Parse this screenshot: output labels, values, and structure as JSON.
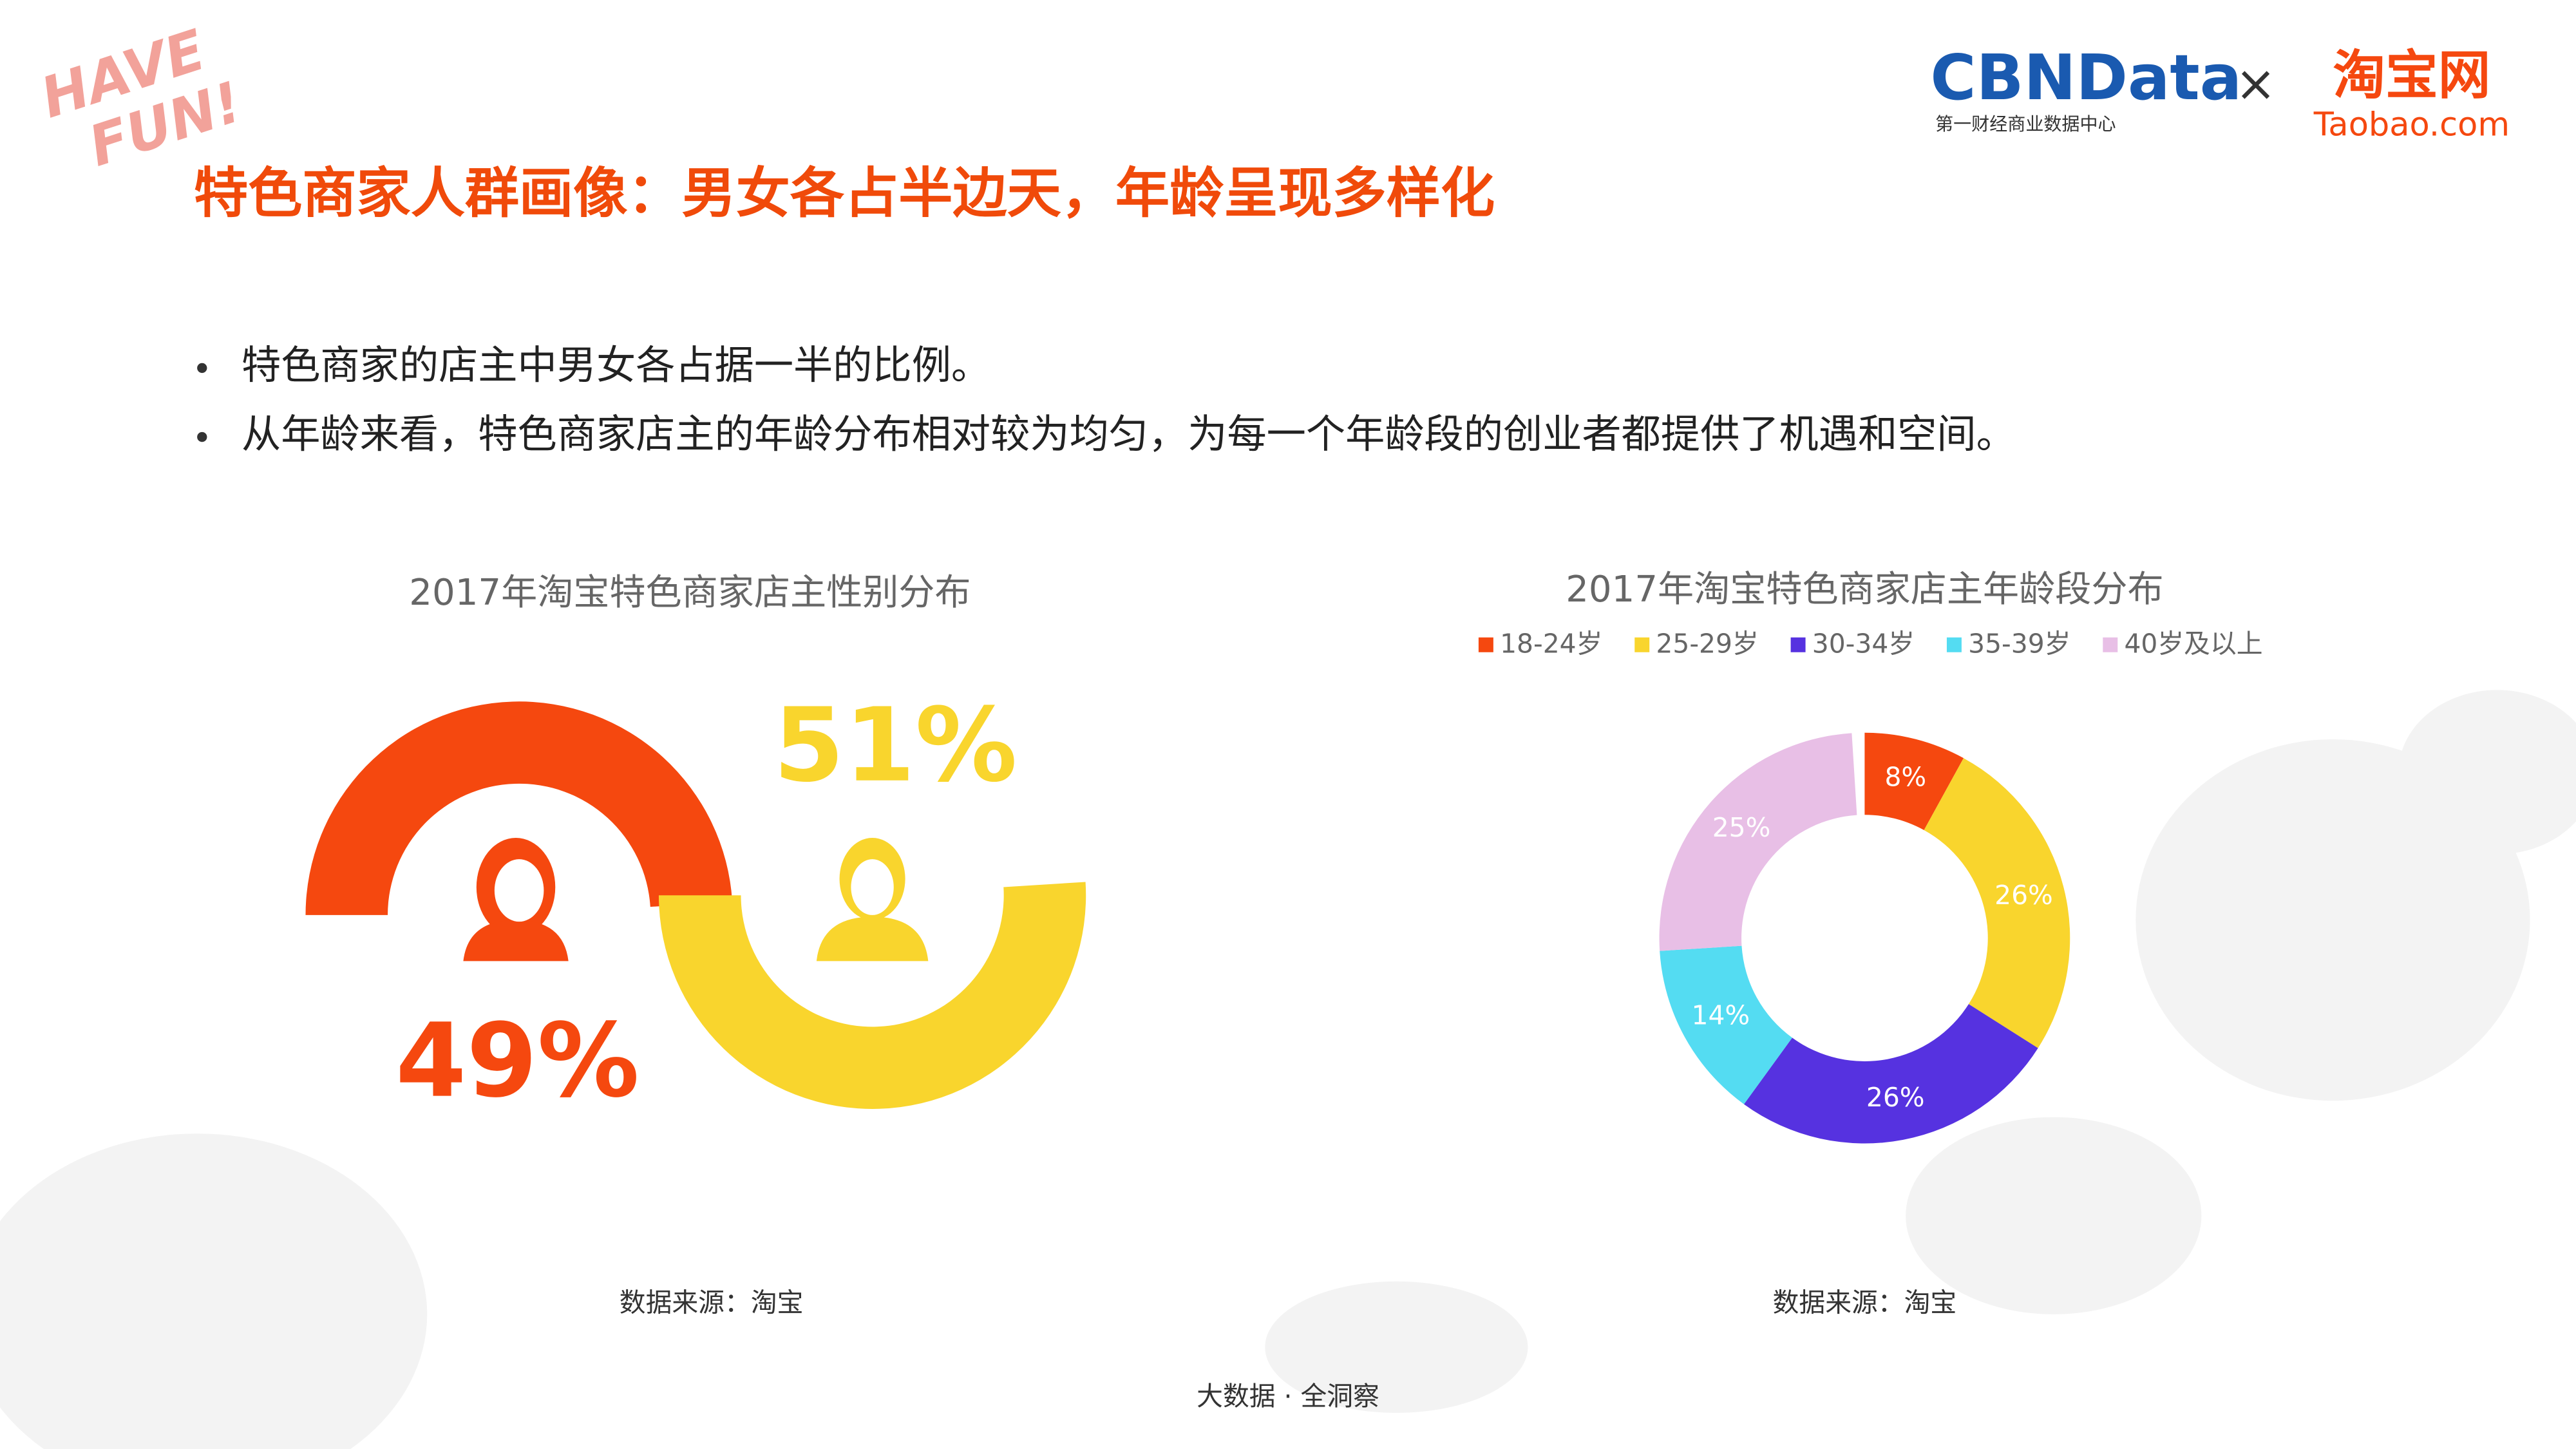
{
  "logo": {
    "have": "HAVE",
    "fun": "FUN!"
  },
  "brand": {
    "cbn": "CBNData",
    "cbn_sub": "第一财经商业数据中心",
    "times": "×",
    "taobao": "淘宝网",
    "taobao_sub": "Taobao.com"
  },
  "header": {
    "title": "特色商家人群画像：男女各占半边天，年龄呈现多样化"
  },
  "bullets": [
    "特色商家的店主中男女各占据一半的比例。",
    "从年龄来看，特色商家店主的年龄分布相对较为均匀，为每一个年龄段的创业者都提供了机遇和空间。"
  ],
  "chart_data": [
    {
      "type": "gauge-pair",
      "title": "2017年淘宝特色商家店主性别分布",
      "values": [
        49,
        51
      ],
      "value_labels": [
        "49%",
        "51%"
      ],
      "colors": [
        "#f5480f",
        "#f9d52d"
      ],
      "source": "数据来源：淘宝"
    },
    {
      "type": "donut",
      "title": "2017年淘宝特色商家店主年龄段分布",
      "categories": [
        "18-24岁",
        "25-29岁",
        "30-34岁",
        "35-39岁",
        "40岁及以上"
      ],
      "values": [
        8,
        26,
        26,
        14,
        25
      ],
      "value_labels": [
        "8%",
        "26%",
        "26%",
        "14%",
        "25%"
      ],
      "colors": [
        "#f5480f",
        "#f9d52d",
        "#5632e0",
        "#54dcf2",
        "#e8bfe6"
      ],
      "source": "数据来源：淘宝"
    }
  ],
  "footer": "大数据 · 全洞察"
}
